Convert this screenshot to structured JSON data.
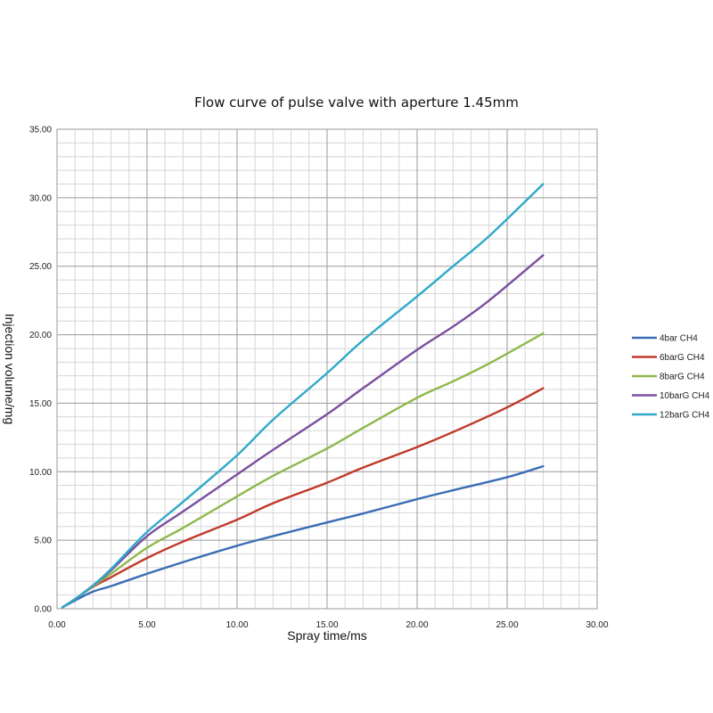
{
  "chart_data": {
    "type": "line",
    "title": "Flow curve of pulse valve with aperture 1.45mm",
    "xlabel": "Spray time/ms",
    "ylabel": "Injection volume/mg",
    "xlim": [
      0,
      30
    ],
    "ylim": [
      0,
      35
    ],
    "x_ticks": [
      "0.00",
      "5.00",
      "10.00",
      "15.00",
      "20.00",
      "25.00",
      "30.00"
    ],
    "y_ticks": [
      "0.00",
      "5.00",
      "10.00",
      "15.00",
      "20.00",
      "25.00",
      "30.00",
      "35.00"
    ],
    "grid": true,
    "legend_position": "right",
    "series": [
      {
        "name": "4bar CH4",
        "color": "#3b6db5",
        "x": [
          0.3,
          1,
          2,
          3,
          5,
          7,
          10,
          12,
          15,
          17,
          20,
          22,
          25,
          27
        ],
        "values": [
          0.1,
          0.6,
          1.25,
          1.65,
          2.55,
          3.4,
          4.6,
          5.3,
          6.3,
          6.95,
          8.0,
          8.65,
          9.6,
          10.4
        ]
      },
      {
        "name": "6barG CH4",
        "color": "#c0392b",
        "x": [
          0.3,
          1,
          2,
          3,
          5,
          7,
          10,
          12,
          15,
          17,
          20,
          22,
          25,
          27
        ],
        "values": [
          0.1,
          0.7,
          1.6,
          2.3,
          3.7,
          4.9,
          6.5,
          7.7,
          9.2,
          10.3,
          11.8,
          12.9,
          14.7,
          16.1
        ]
      },
      {
        "name": "8barG CH4",
        "color": "#8fb84a",
        "x": [
          0.3,
          1,
          2,
          3,
          5,
          7,
          10,
          12,
          15,
          17,
          20,
          22,
          24,
          27
        ],
        "values": [
          0.1,
          0.7,
          1.65,
          2.55,
          4.45,
          5.9,
          8.2,
          9.7,
          11.7,
          13.2,
          15.4,
          16.6,
          17.9,
          20.1
        ]
      },
      {
        "name": "10barG CH4",
        "color": "#7a4fa0",
        "x": [
          0.3,
          1,
          2,
          3,
          5,
          7,
          10,
          12,
          15,
          17,
          20,
          22,
          24,
          27
        ],
        "values": [
          0.1,
          0.7,
          1.7,
          2.8,
          5.3,
          7.1,
          9.8,
          11.6,
          14.2,
          16.1,
          18.9,
          20.6,
          22.5,
          25.8
        ]
      },
      {
        "name": "12barG CH4",
        "color": "#2fa9c9",
        "x": [
          0.3,
          1,
          2,
          3,
          5,
          7,
          10,
          12,
          15,
          17,
          20,
          22,
          24,
          27
        ],
        "values": [
          0.1,
          0.7,
          1.7,
          2.9,
          5.6,
          7.8,
          11.2,
          13.8,
          17.2,
          19.6,
          22.8,
          25.0,
          27.2,
          31.0
        ]
      }
    ]
  }
}
